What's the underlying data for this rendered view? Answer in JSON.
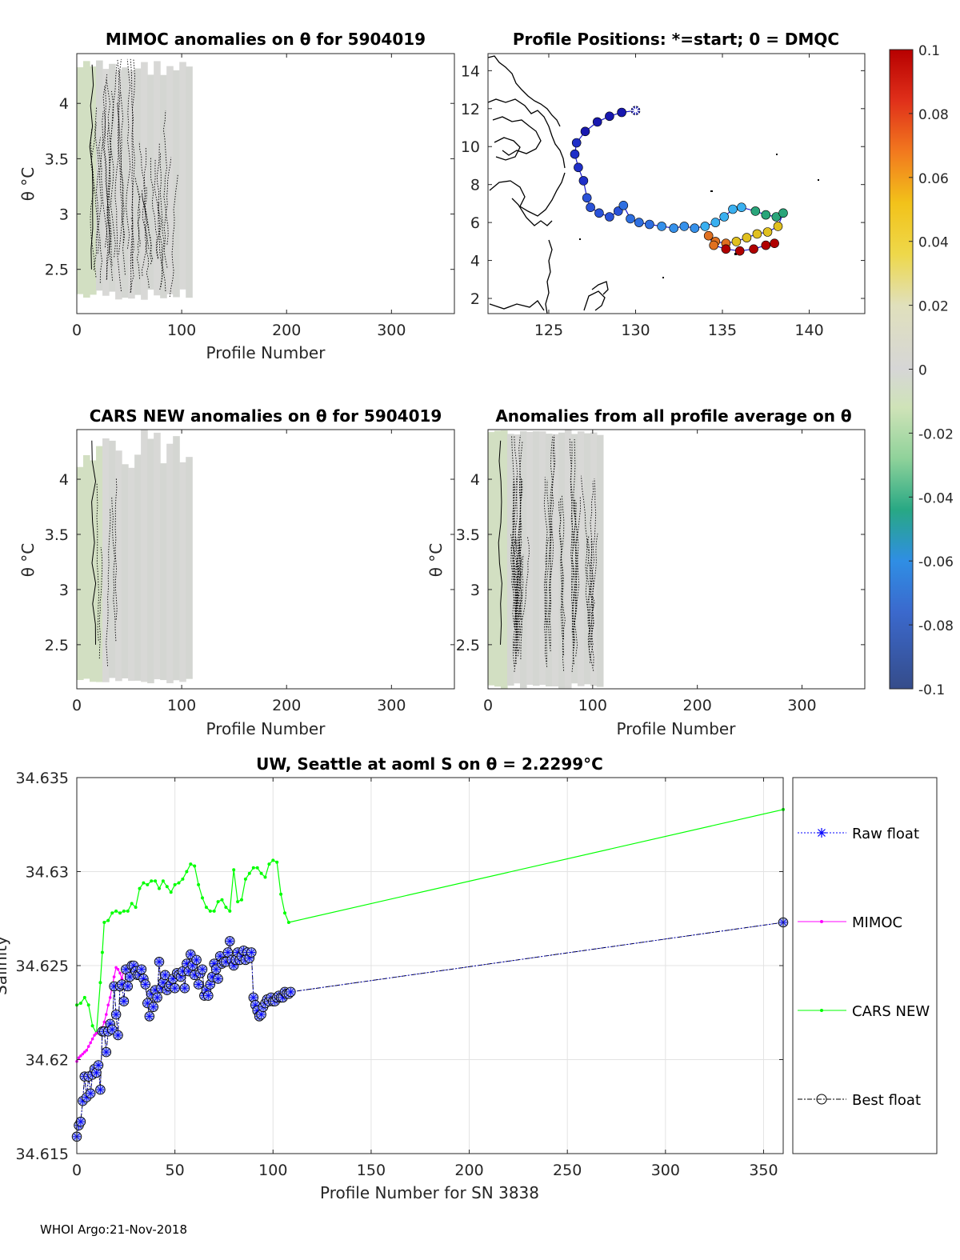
{
  "chart_data": [
    {
      "id": "mimoc",
      "type": "heatmap",
      "title": "MIMOC anomalies on θ  for 5904019",
      "xlabel": "Profile Number",
      "ylabel": "θ °C",
      "xlim": [
        0,
        360
      ],
      "ylim": [
        2.1,
        4.45
      ],
      "xticks": [
        0,
        100,
        200,
        300
      ],
      "yticks": [
        2.5,
        3,
        3.5,
        4
      ],
      "ytick_labels": [
        "2.5",
        "3",
        "3.5",
        "4"
      ],
      "data_extent": {
        "x": [
          0,
          110
        ],
        "theta": [
          2.22,
          4.4
        ]
      }
    },
    {
      "id": "positions",
      "type": "scatter",
      "title": "Profile Positions: *=start; 0 = DMQC",
      "xlim": [
        121.5,
        143.2
      ],
      "ylim": [
        1.2,
        14.9
      ],
      "xticks": [
        125,
        130,
        135,
        140
      ],
      "yticks": [
        2,
        4,
        6,
        8,
        10,
        12,
        14
      ],
      "track": [
        [
          130.0,
          11.9
        ],
        [
          129.2,
          11.8
        ],
        [
          128.5,
          11.6
        ],
        [
          127.8,
          11.3
        ],
        [
          127.1,
          10.8
        ],
        [
          126.6,
          10.2
        ],
        [
          126.5,
          9.6
        ],
        [
          126.7,
          8.9
        ],
        [
          127.0,
          8.2
        ],
        [
          127.2,
          7.3
        ],
        [
          127.4,
          6.8
        ],
        [
          127.9,
          6.5
        ],
        [
          128.5,
          6.3
        ],
        [
          129.0,
          6.6
        ],
        [
          129.3,
          6.9
        ],
        [
          129.7,
          6.2
        ],
        [
          130.2,
          6.0
        ],
        [
          130.8,
          5.9
        ],
        [
          131.5,
          5.8
        ],
        [
          132.2,
          5.7
        ],
        [
          132.8,
          5.8
        ],
        [
          133.4,
          5.7
        ],
        [
          134.0,
          5.8
        ],
        [
          134.6,
          6.0
        ],
        [
          135.1,
          6.3
        ],
        [
          135.6,
          6.7
        ],
        [
          136.1,
          6.8
        ],
        [
          136.9,
          6.6
        ],
        [
          137.5,
          6.4
        ],
        [
          138.1,
          6.3
        ],
        [
          138.5,
          6.5
        ],
        [
          138.2,
          5.8
        ],
        [
          137.6,
          5.5
        ],
        [
          137.0,
          5.4
        ],
        [
          136.4,
          5.2
        ],
        [
          135.8,
          5.0
        ],
        [
          135.2,
          4.9
        ],
        [
          134.6,
          5.0
        ],
        [
          134.2,
          5.3
        ],
        [
          134.5,
          4.8
        ],
        [
          135.2,
          4.6
        ],
        [
          136.0,
          4.5
        ],
        [
          136.8,
          4.6
        ],
        [
          137.5,
          4.8
        ],
        [
          138.0,
          4.9
        ]
      ],
      "start": [
        130.0,
        11.9
      ],
      "colorbar": {
        "ticks": [
          0.1,
          0.08,
          0.06,
          0.04,
          0.02,
          0,
          -0.02,
          -0.04,
          -0.06,
          -0.08,
          -0.1
        ],
        "tick_labels": [
          "0.1",
          "0.08",
          "0.06",
          "0.04",
          "0.02",
          "0",
          "-0.02",
          "-0.04",
          "-0.06",
          "-0.08",
          "-0.1"
        ]
      }
    },
    {
      "id": "cars",
      "type": "heatmap",
      "title": "CARS NEW anomalies on θ for 5904019",
      "xlabel": "Profile Number",
      "ylabel": "θ °C",
      "xlim": [
        0,
        360
      ],
      "ylim": [
        2.1,
        4.45
      ],
      "xticks": [
        0,
        100,
        200,
        300
      ],
      "yticks": [
        2.5,
        3,
        3.5,
        4
      ],
      "ytick_labels": [
        "2.5",
        "3",
        "3.5",
        "4"
      ],
      "data_extent": {
        "x": [
          0,
          110
        ],
        "theta": [
          2.15,
          4.45
        ]
      }
    },
    {
      "id": "allavg",
      "type": "heatmap",
      "title": "Anomalies from all profile average on θ",
      "xlabel": "Profile Number",
      "ylabel": "θ °C",
      "xlim": [
        0,
        360
      ],
      "ylim": [
        2.1,
        4.45
      ],
      "xticks": [
        0,
        100,
        200,
        300
      ],
      "yticks": [
        2.5,
        3,
        3.5,
        4
      ],
      "ytick_labels": [
        "2.5",
        "3",
        "3.5",
        "4"
      ],
      "data_extent": {
        "x": [
          0,
          110
        ],
        "theta": [
          2.1,
          4.45
        ]
      }
    },
    {
      "id": "salinity",
      "type": "line",
      "title": "UW, Seattle at aoml S on θ = 2.2299°C",
      "xlabel": "Profile Number for SN 3838",
      "ylabel": "Salinity",
      "xlim": [
        0,
        360
      ],
      "ylim": [
        34.615,
        34.635
      ],
      "xticks": [
        0,
        50,
        100,
        150,
        200,
        250,
        300,
        350
      ],
      "yticks": [
        34.615,
        34.62,
        34.625,
        34.63,
        34.635
      ],
      "ytick_labels": [
        "34.615",
        "34.62",
        "34.625",
        "34.63",
        "34.635"
      ],
      "series": [
        {
          "name": "Raw float",
          "color": "#0000ff",
          "x": [
            0,
            1,
            2,
            3,
            4,
            5,
            6,
            7,
            8,
            9,
            10,
            11,
            12,
            13,
            14,
            15,
            16,
            17,
            18,
            19,
            20,
            21,
            22,
            23,
            24,
            25,
            26,
            27,
            28,
            29,
            30,
            31,
            32,
            33,
            34,
            35,
            36,
            37,
            38,
            39,
            40,
            41,
            42,
            43,
            44,
            45,
            46,
            47,
            48,
            49,
            50,
            51,
            52,
            53,
            54,
            55,
            56,
            57,
            58,
            59,
            60,
            61,
            62,
            63,
            64,
            65,
            66,
            67,
            68,
            69,
            70,
            71,
            72,
            73,
            74,
            75,
            76,
            77,
            78,
            79,
            80,
            81,
            82,
            83,
            84,
            85,
            86,
            87,
            88,
            89,
            90,
            91,
            92,
            93,
            94,
            95,
            96,
            97,
            98,
            99,
            100,
            101,
            102,
            103,
            104,
            105,
            106,
            107,
            108,
            109,
            360
          ],
          "y": [
            34.6159,
            34.6165,
            34.6167,
            34.6178,
            34.6191,
            34.618,
            34.6191,
            34.6182,
            34.6192,
            34.6195,
            34.6193,
            34.6197,
            34.6184,
            34.6215,
            34.6215,
            34.6204,
            34.6215,
            34.6219,
            34.6216,
            34.6239,
            34.6224,
            34.6213,
            34.6239,
            34.624,
            34.6231,
            34.6248,
            34.6239,
            34.6244,
            34.625,
            34.625,
            34.6247,
            34.6245,
            34.6245,
            34.6248,
            34.6243,
            34.624,
            34.623,
            34.6223,
            34.6235,
            34.6228,
            34.6237,
            34.6233,
            34.6252,
            34.6238,
            34.6241,
            34.6245,
            34.6237,
            34.6239,
            34.624,
            34.6243,
            34.6238,
            34.6246,
            34.6245,
            34.6244,
            34.6247,
            34.6238,
            34.6251,
            34.6247,
            34.6256,
            34.625,
            34.6245,
            34.6253,
            34.624,
            34.6246,
            34.6248,
            34.6234,
            34.6237,
            34.6234,
            34.624,
            34.6244,
            34.6251,
            34.6248,
            34.6243,
            34.6255,
            34.6251,
            34.6252,
            34.6252,
            34.6257,
            34.6263,
            34.6253,
            34.625,
            34.6253,
            34.6257,
            34.6253,
            34.6255,
            34.6258,
            34.6253,
            34.6257,
            34.6254,
            34.6257,
            34.6233,
            34.6229,
            34.6226,
            34.6223,
            34.6224,
            34.6228,
            34.623,
            34.6232,
            34.6231,
            34.6233,
            34.6231,
            34.6231,
            34.6233,
            34.6234,
            34.6233,
            34.6233,
            34.6236,
            34.6235,
            34.6235,
            34.6236,
            34.6273
          ]
        },
        {
          "name": "MIMOC",
          "color": "#ff00ff",
          "x": [
            0,
            1,
            2,
            3,
            4,
            5,
            6,
            7,
            8,
            9,
            10,
            11,
            12,
            13,
            14,
            15,
            16,
            17,
            18,
            19,
            20,
            21,
            22,
            23,
            24,
            25
          ],
          "y": [
            34.6199,
            34.6201,
            34.6202,
            34.6203,
            34.6204,
            34.6205,
            34.6207,
            34.6209,
            34.6211,
            34.6213,
            34.6214,
            34.6215,
            34.6216,
            34.6217,
            34.622,
            34.6224,
            34.6229,
            34.6233,
            34.6239,
            34.6244,
            34.6249,
            34.6248,
            34.6246,
            34.6243,
            34.6248,
            34.6249
          ]
        },
        {
          "name": "CARS NEW",
          "color": "#00ff00",
          "x": [
            0,
            2,
            4,
            6,
            8,
            10,
            12,
            13,
            14,
            16,
            18,
            20,
            22,
            24,
            26,
            28,
            30,
            32,
            34,
            36,
            38,
            40,
            42,
            44,
            46,
            48,
            50,
            52,
            54,
            56,
            58,
            60,
            62,
            64,
            66,
            68,
            70,
            72,
            74,
            76,
            78,
            80,
            82,
            84,
            86,
            88,
            90,
            92,
            94,
            96,
            98,
            100,
            102,
            104,
            106,
            108,
            360
          ],
          "y": [
            34.6229,
            34.623,
            34.6233,
            34.6229,
            34.6218,
            34.6214,
            34.6241,
            34.6257,
            34.6273,
            34.6274,
            34.6278,
            34.6279,
            34.6278,
            34.6279,
            34.6279,
            34.6283,
            34.6281,
            34.6291,
            34.6294,
            34.6293,
            34.6295,
            34.6295,
            34.6291,
            34.6295,
            34.6292,
            34.6289,
            34.6293,
            34.6294,
            34.6296,
            34.63,
            34.6304,
            34.6303,
            34.6293,
            34.6286,
            34.6281,
            34.6279,
            34.6279,
            34.6284,
            34.6285,
            34.6281,
            34.6279,
            34.6301,
            34.6284,
            34.6285,
            34.6296,
            34.6299,
            34.6302,
            34.6302,
            34.6299,
            34.6297,
            34.6304,
            34.6306,
            34.6305,
            34.6288,
            34.6278,
            34.6273,
            34.6333
          ]
        },
        {
          "name": "Best float",
          "color": "#000000"
        }
      ]
    }
  ],
  "footer": "WHOI Argo:21-Nov-2018"
}
